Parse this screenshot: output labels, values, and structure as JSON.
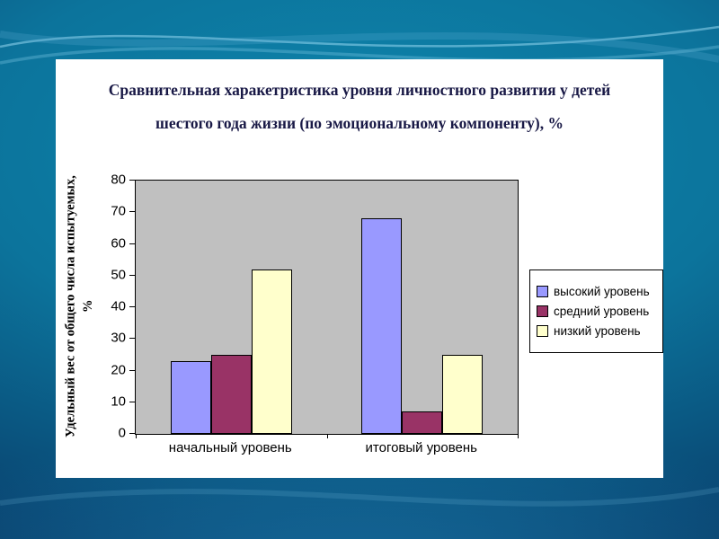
{
  "slide": {
    "colors": {
      "background_teal": "#0c749c",
      "background_dark": "#07325a",
      "panel": "#ffffff",
      "title_text": "#191946"
    }
  },
  "chart_data": {
    "type": "bar",
    "title": "Сравнительная харакетристика уровня личностного развития у детей шестого года жизни (по эмоциональному компоненту), %",
    "ylabel": "Удельный вес от общего числа испытуемых, %",
    "xlabel": "",
    "categories": [
      "начальный уровень",
      "итоговый уровень"
    ],
    "series": [
      {
        "name": "высокий уровень",
        "color": "#9999ff",
        "values": [
          23,
          68
        ]
      },
      {
        "name": "средний уровень",
        "color": "#993366",
        "values": [
          25,
          7
        ]
      },
      {
        "name": "низкий уровень",
        "color": "#ffffcc",
        "values": [
          52,
          25
        ]
      }
    ],
    "ylim": [
      0,
      80
    ],
    "y_tick_step": 10,
    "grid": false,
    "legend_position": "right",
    "plot_background": "#c0c0c0"
  }
}
